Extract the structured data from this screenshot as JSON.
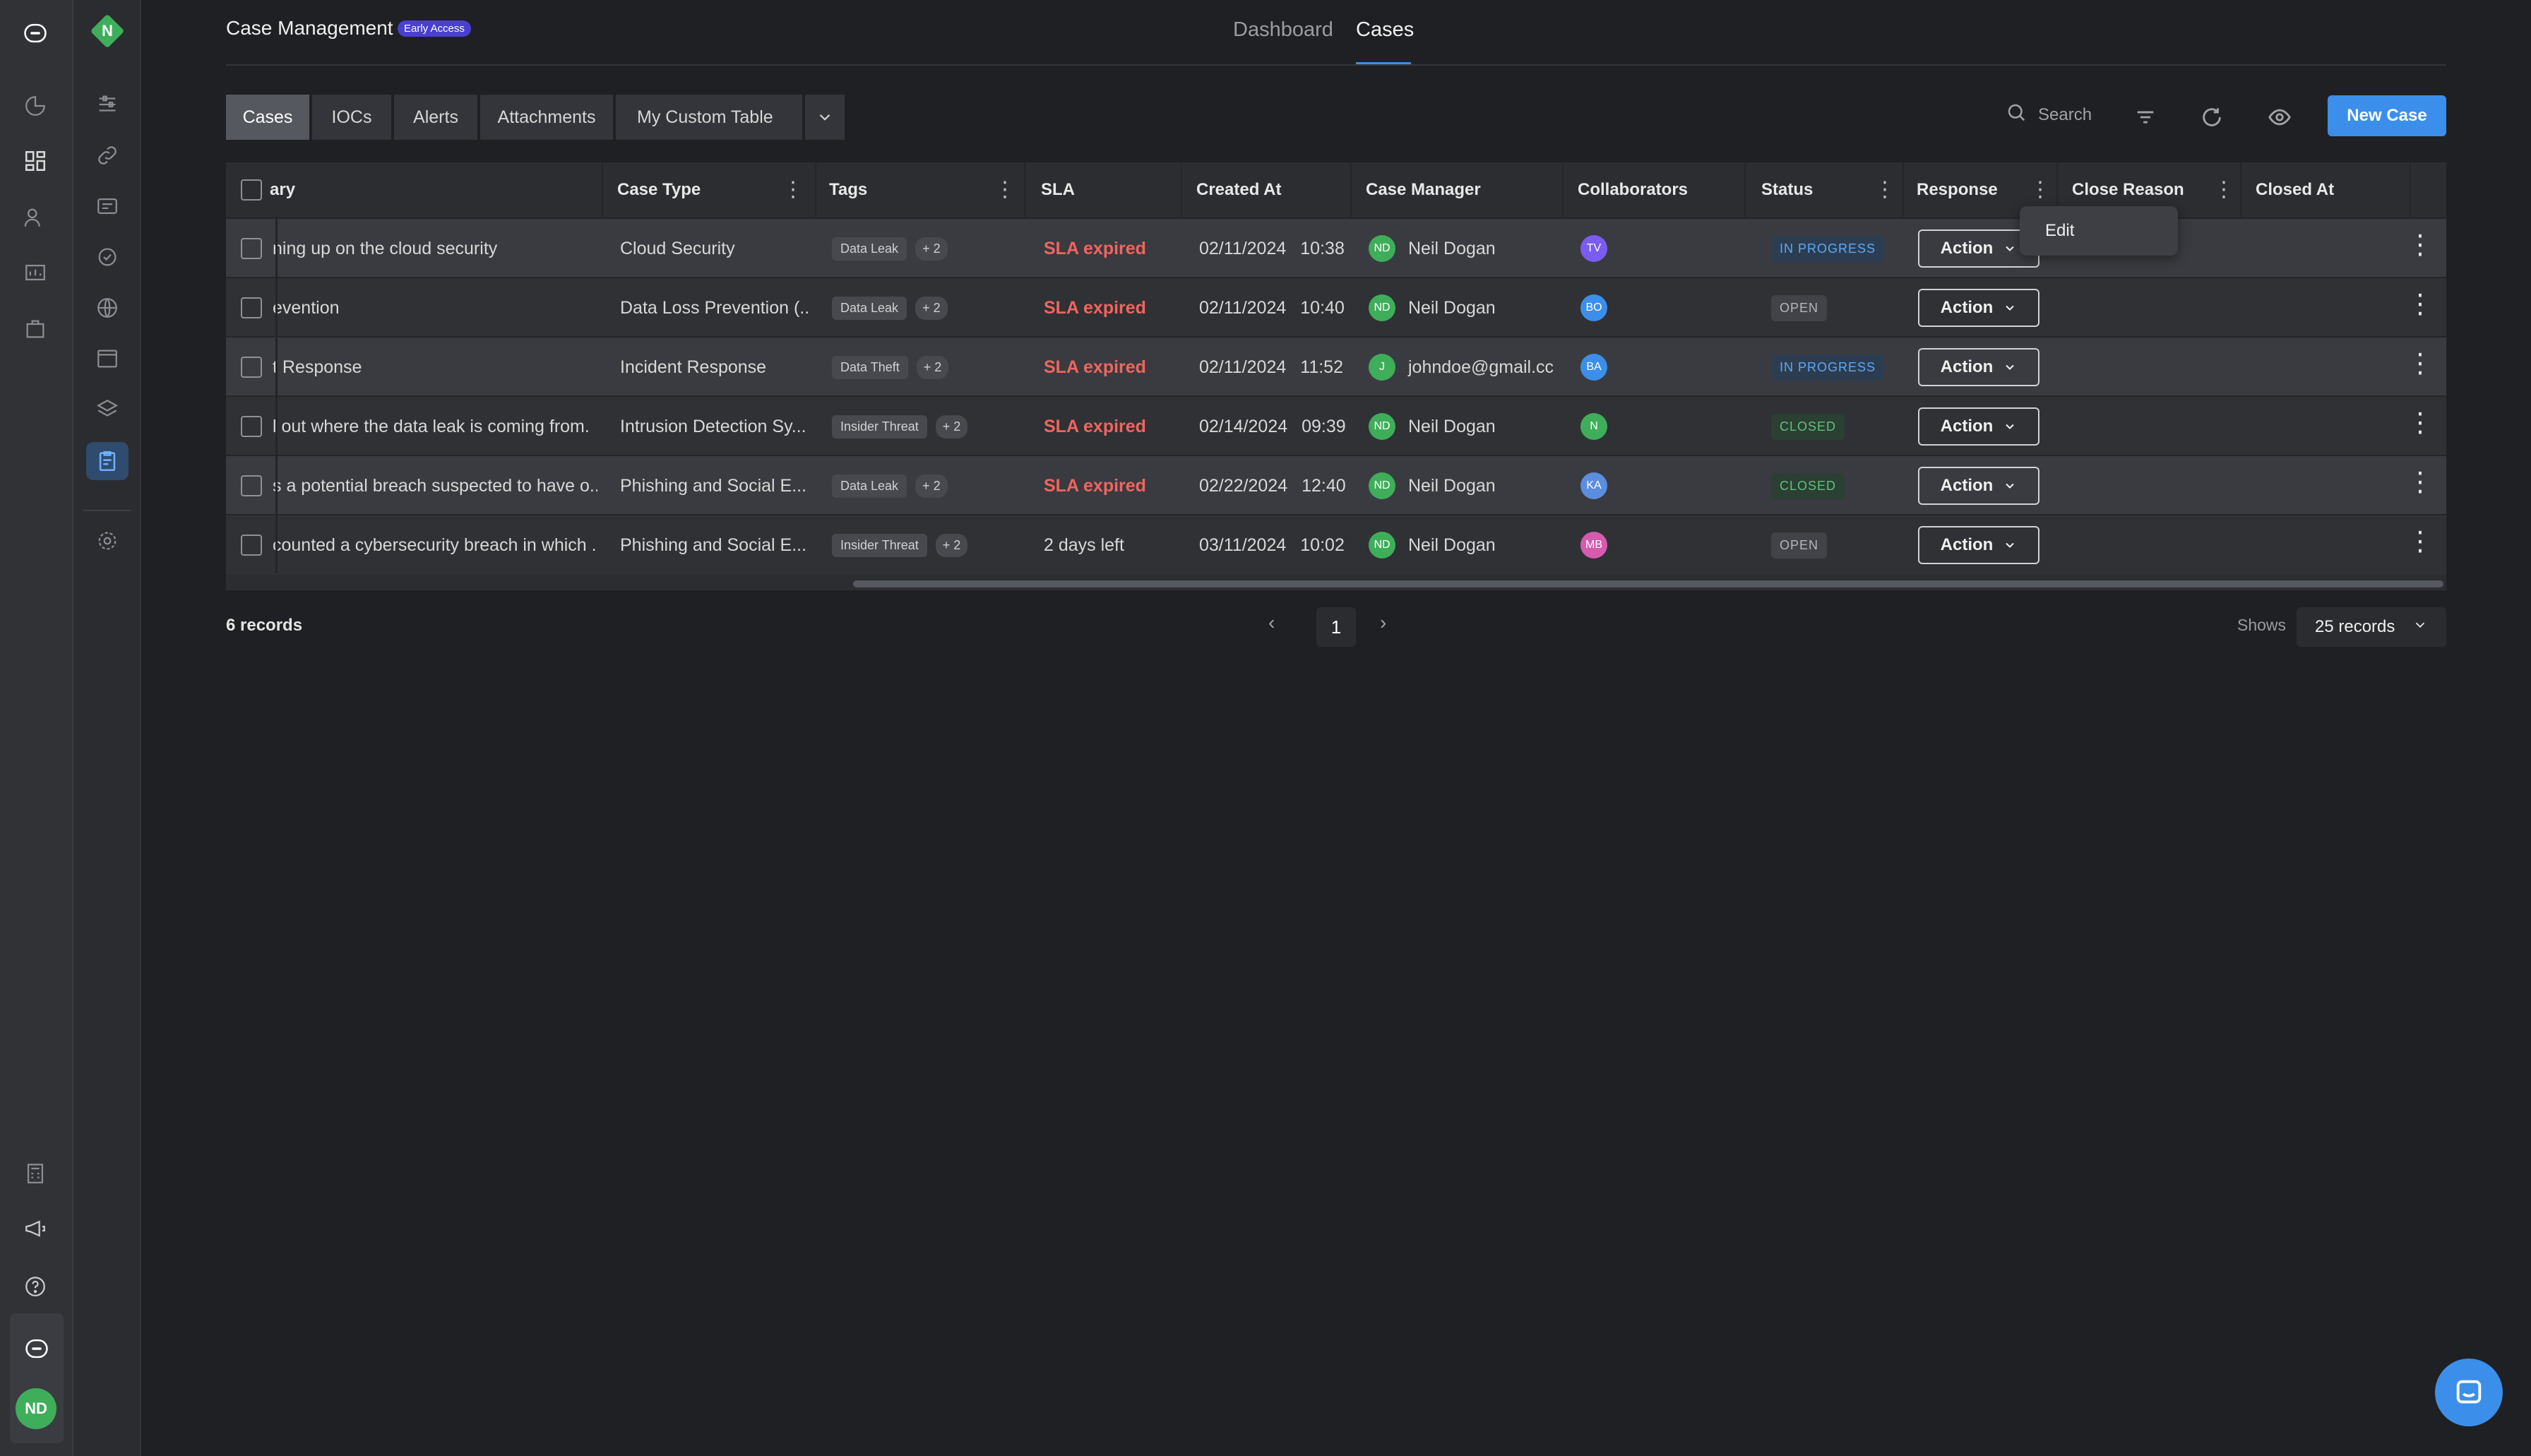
{
  "header": {
    "title": "Case Management",
    "badge": "Early Access",
    "tabs": [
      "Dashboard",
      "Cases"
    ],
    "active_tab": "Cases"
  },
  "workspace_avatar": "N",
  "user_avatar": "ND",
  "subtabs": [
    {
      "label": "Cases",
      "active": true
    },
    {
      "label": "IOCs"
    },
    {
      "label": "Alerts"
    },
    {
      "label": "Attachments"
    },
    {
      "label": "My Custom Table"
    }
  ],
  "toolbar": {
    "search_label": "Search",
    "new_case_label": "New Case"
  },
  "table": {
    "columns": [
      "ary",
      "Case Type",
      "Tags",
      "SLA",
      "Created At",
      "Case Manager",
      "Collaborators",
      "Status",
      "Response",
      "Close Reason",
      "Closed At"
    ],
    "rows": [
      {
        "summary": "ning up on the cloud security",
        "case_type": "Cloud Security",
        "tag": "Data Leak",
        "tag_more": "+ 2",
        "sla": "SLA expired",
        "sla_expired": true,
        "created_date": "02/11/2024",
        "created_time": "10:38",
        "manager_initials": "ND",
        "manager": "Neil Dogan",
        "collab": "TV",
        "collab_color": "#7b5cf0",
        "status": "IN PROGRESS",
        "status_kind": "prog",
        "action": "Action"
      },
      {
        "summary": "evention",
        "case_type": "Data Loss Prevention (...",
        "tag": "Data Leak",
        "tag_more": "+ 2",
        "sla": "SLA expired",
        "sla_expired": true,
        "created_date": "02/11/2024",
        "created_time": "10:40",
        "manager_initials": "ND",
        "manager": "Neil Dogan",
        "collab": "BO",
        "collab_color": "#3b8fea",
        "status": "OPEN",
        "status_kind": "open",
        "action": "Action"
      },
      {
        "summary": "t Response",
        "case_type": "Incident Response",
        "tag": "Data Theft",
        "tag_more": "+ 2",
        "sla": "SLA expired",
        "sla_expired": true,
        "created_date": "02/11/2024",
        "created_time": "11:52",
        "manager_initials": "J",
        "manager": "johndoe@gmail.cc",
        "collab": "BA",
        "collab_color": "#3b8fea",
        "status": "IN PROGRESS",
        "status_kind": "prog",
        "action": "Action"
      },
      {
        "summary": "l out where the data leak is coming from.",
        "case_type": "Intrusion Detection Sy...",
        "tag": "Insider Threat",
        "tag_more": "+ 2",
        "sla": "SLA expired",
        "sla_expired": true,
        "created_date": "02/14/2024",
        "created_time": "09:39",
        "manager_initials": "ND",
        "manager": "Neil Dogan",
        "collab": "N",
        "collab_color": "#3fae5a",
        "status": "CLOSED",
        "status_kind": "closed",
        "action": "Action"
      },
      {
        "summary": "s a potential breach suspected to have o...",
        "case_type": "Phishing and Social E...",
        "tag": "Data Leak",
        "tag_more": "+ 2",
        "sla": "SLA expired",
        "sla_expired": true,
        "created_date": "02/22/2024",
        "created_time": "12:40",
        "manager_initials": "ND",
        "manager": "Neil Dogan",
        "collab": "KA",
        "collab_color": "#5b8de0",
        "status": "CLOSED",
        "status_kind": "closed",
        "action": "Action"
      },
      {
        "summary": "counted a cybersecurity breach in which ...",
        "case_type": "Phishing and Social E...",
        "tag": "Insider Threat",
        "tag_more": "+ 2",
        "sla": "2 days left",
        "sla_expired": false,
        "created_date": "03/11/2024",
        "created_time": "10:02",
        "manager_initials": "ND",
        "manager": "Neil Dogan",
        "collab": "MB",
        "collab_color": "#d45bb0",
        "status": "OPEN",
        "status_kind": "open",
        "action": "Action"
      }
    ]
  },
  "popup": {
    "edit_label": "Edit"
  },
  "footer": {
    "records": "6 records",
    "page": "1",
    "shows_label": "Shows",
    "per_page": "25 records"
  },
  "colors": {
    "accent": "#3b8fea",
    "danger": "#f0655e",
    "success": "#3fae5a"
  }
}
